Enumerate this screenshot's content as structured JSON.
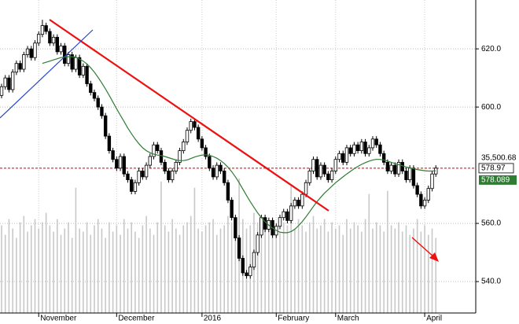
{
  "chart_data": {
    "type": "candlestick",
    "categories": [
      null,
      null,
      null,
      null,
      null,
      null,
      null,
      null,
      null,
      null,
      "November",
      null,
      null,
      null,
      null,
      null,
      null,
      null,
      null,
      null,
      null,
      null,
      null,
      null,
      null,
      null,
      null,
      null,
      null,
      null,
      null,
      "December",
      null,
      null,
      null,
      null,
      null,
      null,
      null,
      null,
      null,
      null,
      null,
      null,
      null,
      null,
      null,
      null,
      null,
      null,
      null,
      null,
      null,
      null,
      "2016",
      null,
      null,
      null,
      null,
      null,
      null,
      null,
      null,
      null,
      null,
      null,
      null,
      null,
      null,
      null,
      null,
      null,
      null,
      null,
      "February",
      null,
      null,
      null,
      null,
      null,
      null,
      null,
      null,
      null,
      null,
      null,
      null,
      null,
      null,
      null,
      "March",
      null,
      null,
      null,
      null,
      null,
      null,
      null,
      null,
      null,
      null,
      null,
      null,
      null,
      null,
      null,
      null,
      null,
      null,
      null,
      null,
      null,
      null,
      null,
      "April",
      null,
      null,
      null
    ],
    "open": [
      604,
      607,
      610,
      606,
      612,
      615,
      613,
      618,
      620,
      617,
      622,
      625,
      628,
      626,
      622,
      624,
      619,
      621,
      615,
      618,
      613,
      617,
      611,
      614,
      608,
      605,
      603,
      600,
      597,
      590,
      585,
      582,
      579,
      583,
      577,
      575,
      571,
      574,
      578,
      576,
      580,
      583,
      587,
      585,
      581,
      578,
      575,
      578,
      581,
      585,
      588,
      592,
      595,
      593,
      589,
      586,
      583,
      579,
      576,
      580,
      578,
      574,
      568,
      562,
      555,
      548,
      543,
      542,
      545,
      550,
      556,
      562,
      558,
      561,
      556,
      559,
      562,
      564,
      561,
      566,
      568,
      566,
      570,
      574,
      578,
      582,
      576,
      580,
      577,
      575,
      578,
      582,
      584,
      581,
      586,
      584,
      587,
      585,
      588,
      584,
      586,
      589,
      587,
      584,
      581,
      578,
      580,
      577,
      581,
      578,
      575,
      579,
      573,
      570,
      566,
      568,
      572,
      577
    ],
    "high": [
      608,
      611,
      611,
      613,
      616,
      616,
      619,
      621,
      621,
      623,
      626,
      630,
      629,
      627,
      625,
      625,
      622,
      622,
      619,
      619,
      618,
      618,
      615,
      615,
      609,
      606,
      604,
      601,
      598,
      591,
      586,
      583,
      584,
      584,
      578,
      576,
      575,
      579,
      579,
      581,
      584,
      588,
      588,
      586,
      582,
      579,
      579,
      582,
      586,
      589,
      593,
      596,
      596,
      594,
      590,
      587,
      584,
      580,
      581,
      581,
      579,
      575,
      569,
      563,
      556,
      549,
      544,
      546,
      551,
      557,
      563,
      563,
      562,
      562,
      560,
      563,
      565,
      565,
      567,
      569,
      569,
      571,
      575,
      579,
      583,
      583,
      581,
      581,
      578,
      579,
      583,
      585,
      585,
      587,
      587,
      588,
      588,
      589,
      589,
      587,
      590,
      590,
      588,
      585,
      582,
      581,
      581,
      582,
      582,
      579,
      580,
      580,
      574,
      571,
      569,
      573,
      578,
      580
    ],
    "low": [
      603,
      606,
      605,
      605,
      611,
      612,
      612,
      617,
      616,
      616,
      621,
      624,
      625,
      621,
      621,
      618,
      618,
      614,
      614,
      612,
      612,
      610,
      610,
      607,
      604,
      602,
      599,
      596,
      589,
      584,
      581,
      578,
      578,
      576,
      574,
      570,
      570,
      573,
      575,
      575,
      579,
      582,
      584,
      580,
      577,
      574,
      574,
      577,
      580,
      584,
      587,
      591,
      592,
      588,
      585,
      582,
      578,
      575,
      575,
      577,
      573,
      567,
      561,
      554,
      547,
      542,
      541,
      541,
      544,
      549,
      555,
      557,
      557,
      555,
      555,
      558,
      561,
      560,
      560,
      565,
      565,
      565,
      569,
      573,
      577,
      575,
      575,
      576,
      574,
      574,
      577,
      581,
      580,
      580,
      583,
      583,
      584,
      584,
      583,
      583,
      585,
      586,
      583,
      580,
      577,
      577,
      576,
      576,
      577,
      574,
      574,
      572,
      569,
      565,
      565,
      567,
      571,
      576
    ],
    "close": [
      607,
      610,
      606,
      612,
      615,
      613,
      618,
      620,
      617,
      622,
      625,
      628,
      626,
      622,
      624,
      619,
      621,
      615,
      618,
      613,
      617,
      611,
      614,
      608,
      605,
      603,
      600,
      597,
      590,
      585,
      582,
      579,
      583,
      577,
      575,
      571,
      574,
      578,
      576,
      580,
      583,
      587,
      585,
      581,
      578,
      575,
      578,
      581,
      585,
      588,
      592,
      595,
      593,
      589,
      586,
      583,
      579,
      576,
      580,
      578,
      574,
      568,
      562,
      555,
      548,
      543,
      542,
      545,
      550,
      556,
      562,
      558,
      561,
      556,
      559,
      562,
      564,
      561,
      566,
      568,
      566,
      570,
      574,
      578,
      582,
      576,
      580,
      577,
      575,
      578,
      582,
      584,
      581,
      586,
      584,
      587,
      585,
      588,
      584,
      586,
      589,
      587,
      584,
      581,
      578,
      580,
      577,
      581,
      578,
      575,
      579,
      573,
      570,
      566,
      568,
      572,
      577,
      579
    ],
    "up_color": "#ffffff",
    "down_color": "#000000",
    "ma": {
      "color": "#2e7d32",
      "values": [
        null,
        null,
        null,
        null,
        null,
        null,
        null,
        null,
        null,
        null,
        null,
        615.0,
        615.4,
        615.8,
        616.2,
        616.6,
        617.0,
        617.2,
        617.3,
        617.3,
        617.2,
        616.5,
        615.8,
        614.8,
        613.5,
        612.0,
        610.2,
        608.3,
        606.2,
        604.0,
        601.7,
        599.4,
        597.2,
        595.0,
        592.8,
        590.8,
        589.0,
        587.4,
        586.0,
        585.0,
        584.3,
        583.8,
        583.5,
        583.3,
        583.0,
        582.6,
        582.2,
        581.8,
        581.6,
        581.6,
        581.8,
        582.3,
        582.8,
        583.2,
        583.5,
        583.6,
        583.4,
        583.0,
        582.4,
        581.6,
        580.6,
        579.3,
        577.8,
        576.0,
        574.0,
        571.8,
        569.6,
        567.5,
        565.5,
        563.6,
        562.0,
        560.6,
        559.4,
        558.4,
        557.6,
        557.0,
        556.8,
        556.8,
        557.2,
        558.0,
        559.2,
        560.6,
        562.2,
        564.0,
        565.8,
        567.5,
        569.0,
        570.4,
        571.6,
        572.8,
        574.0,
        575.0,
        576.0,
        577.0,
        577.9,
        578.8,
        579.6,
        580.3,
        580.9,
        581.4,
        581.8,
        582.0,
        582.0,
        581.8,
        581.4,
        581.0,
        580.6,
        580.2,
        579.8,
        579.4,
        579.1,
        578.8,
        578.5,
        578.3,
        578.1,
        578.0,
        578.0,
        578.089
      ]
    },
    "volume": {
      "color": "#c8c8c8",
      "ylim": [
        0,
        100
      ],
      "values": [
        28,
        25,
        30,
        27,
        24,
        29,
        31,
        26,
        28,
        30,
        27,
        29,
        32,
        28,
        26,
        30,
        25,
        27,
        29,
        24,
        40,
        27,
        26,
        29,
        25,
        28,
        30,
        27,
        24,
        29,
        26,
        28,
        25,
        30,
        27,
        29,
        26,
        24,
        28,
        31,
        27,
        25,
        29,
        42,
        28,
        26,
        30,
        27,
        25,
        28,
        29,
        31,
        40,
        27,
        26,
        28,
        29,
        30,
        25,
        27,
        28,
        31,
        29,
        26,
        43,
        30,
        27,
        28,
        32,
        29,
        26,
        28,
        27,
        30,
        25,
        26,
        29,
        28,
        41,
        27,
        30,
        28,
        26,
        29,
        31,
        27,
        28,
        30,
        26,
        29,
        27,
        28,
        25,
        30,
        27,
        29,
        28,
        26,
        30,
        38,
        27,
        29,
        28,
        26,
        39,
        28,
        27,
        29,
        26,
        28,
        25,
        27,
        30,
        26,
        28,
        25,
        27,
        24
      ]
    },
    "last_price": 578.97,
    "last_price_color": "#cc0000",
    "volume_label": "35,500.68",
    "ylim": [
      529.2,
      636.8
    ],
    "yticks": [
      {
        "value": 540,
        "label": "540.0"
      },
      {
        "value": 560,
        "label": "560.0"
      },
      {
        "value": 600,
        "label": "600.0"
      },
      {
        "value": 620,
        "label": "620.0"
      }
    ],
    "grid": true
  }
}
